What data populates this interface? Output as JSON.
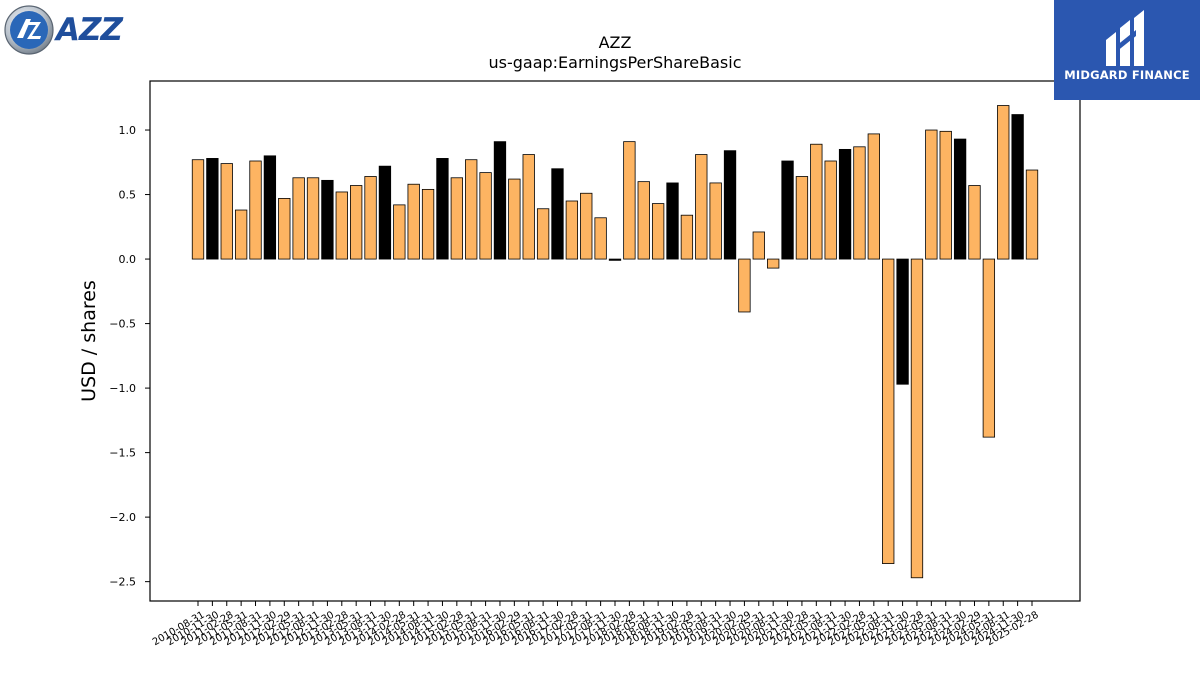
{
  "logos": {
    "left_text": "AZZ",
    "right_text": "MIDGARD FINANCE"
  },
  "colors": {
    "bar_default": "#fdb462",
    "bar_highlight": "#000000",
    "azz_blue": "#1f4e9c",
    "midgard_bg": "#2b57b0"
  },
  "chart_data": {
    "type": "bar",
    "title": "AZZ",
    "subtitle": "us-gaap:EarningsPerShareBasic",
    "xlabel": "",
    "ylabel": "USD / shares",
    "ylim": [
      -2.65,
      1.38
    ],
    "yticks": [
      -2.5,
      -2.0,
      -1.5,
      -1.0,
      -0.5,
      0.0,
      0.5,
      1.0
    ],
    "ytick_labels": [
      "−2.5",
      "−2.0",
      "−1.5",
      "−1.0",
      "−0.5",
      "0.0",
      "0.5",
      "1.0"
    ],
    "grid": false,
    "categories": [
      "2010-08-31",
      "2010-11-30",
      "2011-02-28",
      "2011-05-31",
      "2011-08-31",
      "2011-11-30",
      "2012-02-29",
      "2012-05-31",
      "2012-08-31",
      "2012-11-30",
      "2013-02-28",
      "2013-05-31",
      "2013-08-31",
      "2013-11-30",
      "2014-02-28",
      "2014-05-31",
      "2014-08-31",
      "2014-11-30",
      "2015-02-28",
      "2015-05-31",
      "2015-08-31",
      "2015-11-30",
      "2016-02-29",
      "2016-05-31",
      "2016-08-31",
      "2016-11-30",
      "2017-02-28",
      "2017-05-31",
      "2017-08-31",
      "2017-11-30",
      "2018-02-28",
      "2018-05-31",
      "2018-08-31",
      "2018-11-30",
      "2019-02-28",
      "2019-05-31",
      "2019-08-31",
      "2019-11-30",
      "2020-02-29",
      "2020-05-31",
      "2020-08-31",
      "2020-11-30",
      "2021-02-28",
      "2021-05-31",
      "2021-08-31",
      "2021-11-30",
      "2022-02-28",
      "2022-05-31",
      "2022-08-31",
      "2022-11-30",
      "2023-02-28",
      "2023-05-31",
      "2023-08-31",
      "2023-11-30",
      "2024-02-29",
      "2024-05-31",
      "2024-08-31",
      "2024-11-30",
      "2025-02-28"
    ],
    "values": [
      0.77,
      0.78,
      0.74,
      0.38,
      0.76,
      0.8,
      0.47,
      0.63,
      0.63,
      0.61,
      0.52,
      0.57,
      0.64,
      0.72,
      0.42,
      0.58,
      0.54,
      0.78,
      0.63,
      0.77,
      0.67,
      0.91,
      0.62,
      0.81,
      0.39,
      0.7,
      0.45,
      0.51,
      0.32,
      -0.01,
      0.91,
      0.6,
      0.43,
      0.59,
      0.34,
      0.81,
      0.59,
      0.84,
      -0.41,
      0.21,
      -0.07,
      0.76,
      0.64,
      0.89,
      0.76,
      0.85,
      0.87,
      0.97,
      -2.36,
      -0.97,
      -2.47,
      1.0,
      0.99,
      0.93,
      0.57,
      -1.38,
      1.19,
      1.12,
      0.69
    ],
    "highlight": [
      false,
      true,
      false,
      false,
      false,
      true,
      false,
      false,
      false,
      true,
      false,
      false,
      false,
      true,
      false,
      false,
      false,
      true,
      false,
      false,
      false,
      true,
      false,
      false,
      false,
      true,
      false,
      false,
      false,
      true,
      false,
      false,
      false,
      true,
      false,
      false,
      false,
      true,
      false,
      false,
      false,
      true,
      false,
      false,
      false,
      true,
      false,
      false,
      false,
      true,
      false,
      false,
      false,
      true,
      false,
      false,
      false,
      true,
      false
    ]
  }
}
